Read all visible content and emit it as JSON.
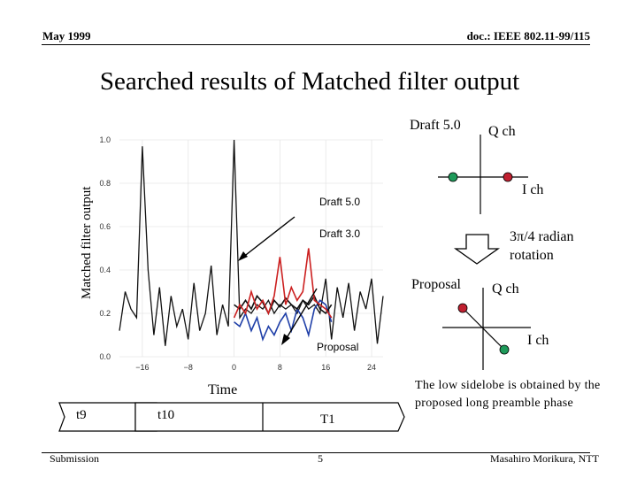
{
  "header": {
    "date": "May 1999",
    "doc_id": "doc.: IEEE 802.11-99/115"
  },
  "slide": {
    "title": "Searched results of Matched filter output"
  },
  "chart": {
    "ylabel": "Matched filter output",
    "xlabel": "Time",
    "annotations": {
      "draft50": "Draft 5.0",
      "draft30": "Draft 3.0",
      "proposal": "Proposal"
    }
  },
  "chart_data": {
    "type": "line",
    "xlabel": "Time",
    "ylabel": "Matched filter output",
    "xlim": [
      -20,
      26
    ],
    "ylim": [
      0.0,
      1.0
    ],
    "x_ticks": [
      "-16",
      "-8",
      "0",
      "8",
      "16",
      "24"
    ],
    "y_ticks": [
      "0.0",
      "0.2",
      "0.4",
      "0.6",
      "0.8",
      "1.0"
    ],
    "series": [
      {
        "name": "Draft 5.0",
        "color": "#cc2020",
        "x": [
          0,
          1,
          2,
          3,
          4,
          5,
          6,
          7,
          8,
          9,
          10,
          11,
          12,
          13,
          14,
          15,
          16,
          17
        ],
        "y": [
          0.18,
          0.24,
          0.2,
          0.3,
          0.22,
          0.26,
          0.2,
          0.28,
          0.46,
          0.24,
          0.32,
          0.26,
          0.3,
          0.5,
          0.26,
          0.24,
          0.22,
          0.18
        ]
      },
      {
        "name": "Draft 3.0",
        "color": "#111111",
        "x": [
          0,
          1,
          2,
          3,
          4,
          5,
          6,
          7,
          8,
          9,
          10,
          11,
          12,
          13,
          14,
          15,
          16,
          17
        ],
        "y": [
          0.24,
          0.22,
          0.26,
          0.22,
          0.28,
          0.25,
          0.2,
          0.26,
          0.23,
          0.27,
          0.24,
          0.22,
          0.26,
          0.24,
          0.28,
          0.22,
          0.2,
          0.24
        ]
      },
      {
        "name": "Proposal",
        "color": "#1f3fa8",
        "x": [
          0,
          1,
          2,
          3,
          4,
          5,
          6,
          7,
          8,
          9,
          10,
          11,
          12,
          13,
          14,
          15,
          16,
          17
        ],
        "y": [
          0.16,
          0.14,
          0.2,
          0.12,
          0.18,
          0.08,
          0.14,
          0.1,
          0.16,
          0.2,
          0.12,
          0.22,
          0.18,
          0.1,
          0.22,
          0.26,
          0.24,
          0.16
        ]
      },
      {
        "name": "",
        "color": "#111111",
        "x": [
          -20,
          -19,
          -18,
          -17,
          -16,
          -15,
          -14,
          -13,
          -12,
          -11,
          -10,
          -9,
          -8,
          -7,
          -6,
          -5,
          -4,
          -3,
          -2,
          -1,
          0,
          1,
          2,
          3,
          4,
          5,
          6,
          7,
          8,
          9,
          10,
          11,
          12,
          13,
          14,
          15,
          16,
          17,
          18,
          19,
          20,
          21,
          22,
          23,
          24,
          25,
          26
        ],
        "y": [
          0.12,
          0.3,
          0.22,
          0.18,
          0.97,
          0.4,
          0.1,
          0.32,
          0.05,
          0.28,
          0.14,
          0.22,
          0.08,
          0.34,
          0.12,
          0.2,
          0.42,
          0.1,
          0.24,
          0.14,
          1.0,
          0.18,
          0.22,
          0.2,
          0.24,
          0.22,
          0.26,
          0.2,
          0.24,
          0.22,
          0.24,
          0.2,
          0.26,
          0.22,
          0.24,
          0.2,
          0.36,
          0.08,
          0.32,
          0.18,
          0.34,
          0.12,
          0.3,
          0.22,
          0.36,
          0.06,
          0.28
        ]
      }
    ]
  },
  "diagram": {
    "draft_label": "Draft 5.0",
    "proposal_label": "Proposal",
    "q_label": "Q ch",
    "i_label": "I ch",
    "rotation_label_1": "3π/4 radian",
    "rotation_label_2": "rotation",
    "note": "The low sidelobe is obtained by the proposed long preamble phase",
    "colors": {
      "green": "#1e9a5a",
      "red": "#c02030"
    }
  },
  "timeline": {
    "t9": "t9",
    "t10": "t10",
    "T1": "T1"
  },
  "footer": {
    "left": "Submission",
    "page": "5",
    "author": "Masahiro Morikura, NTT"
  }
}
